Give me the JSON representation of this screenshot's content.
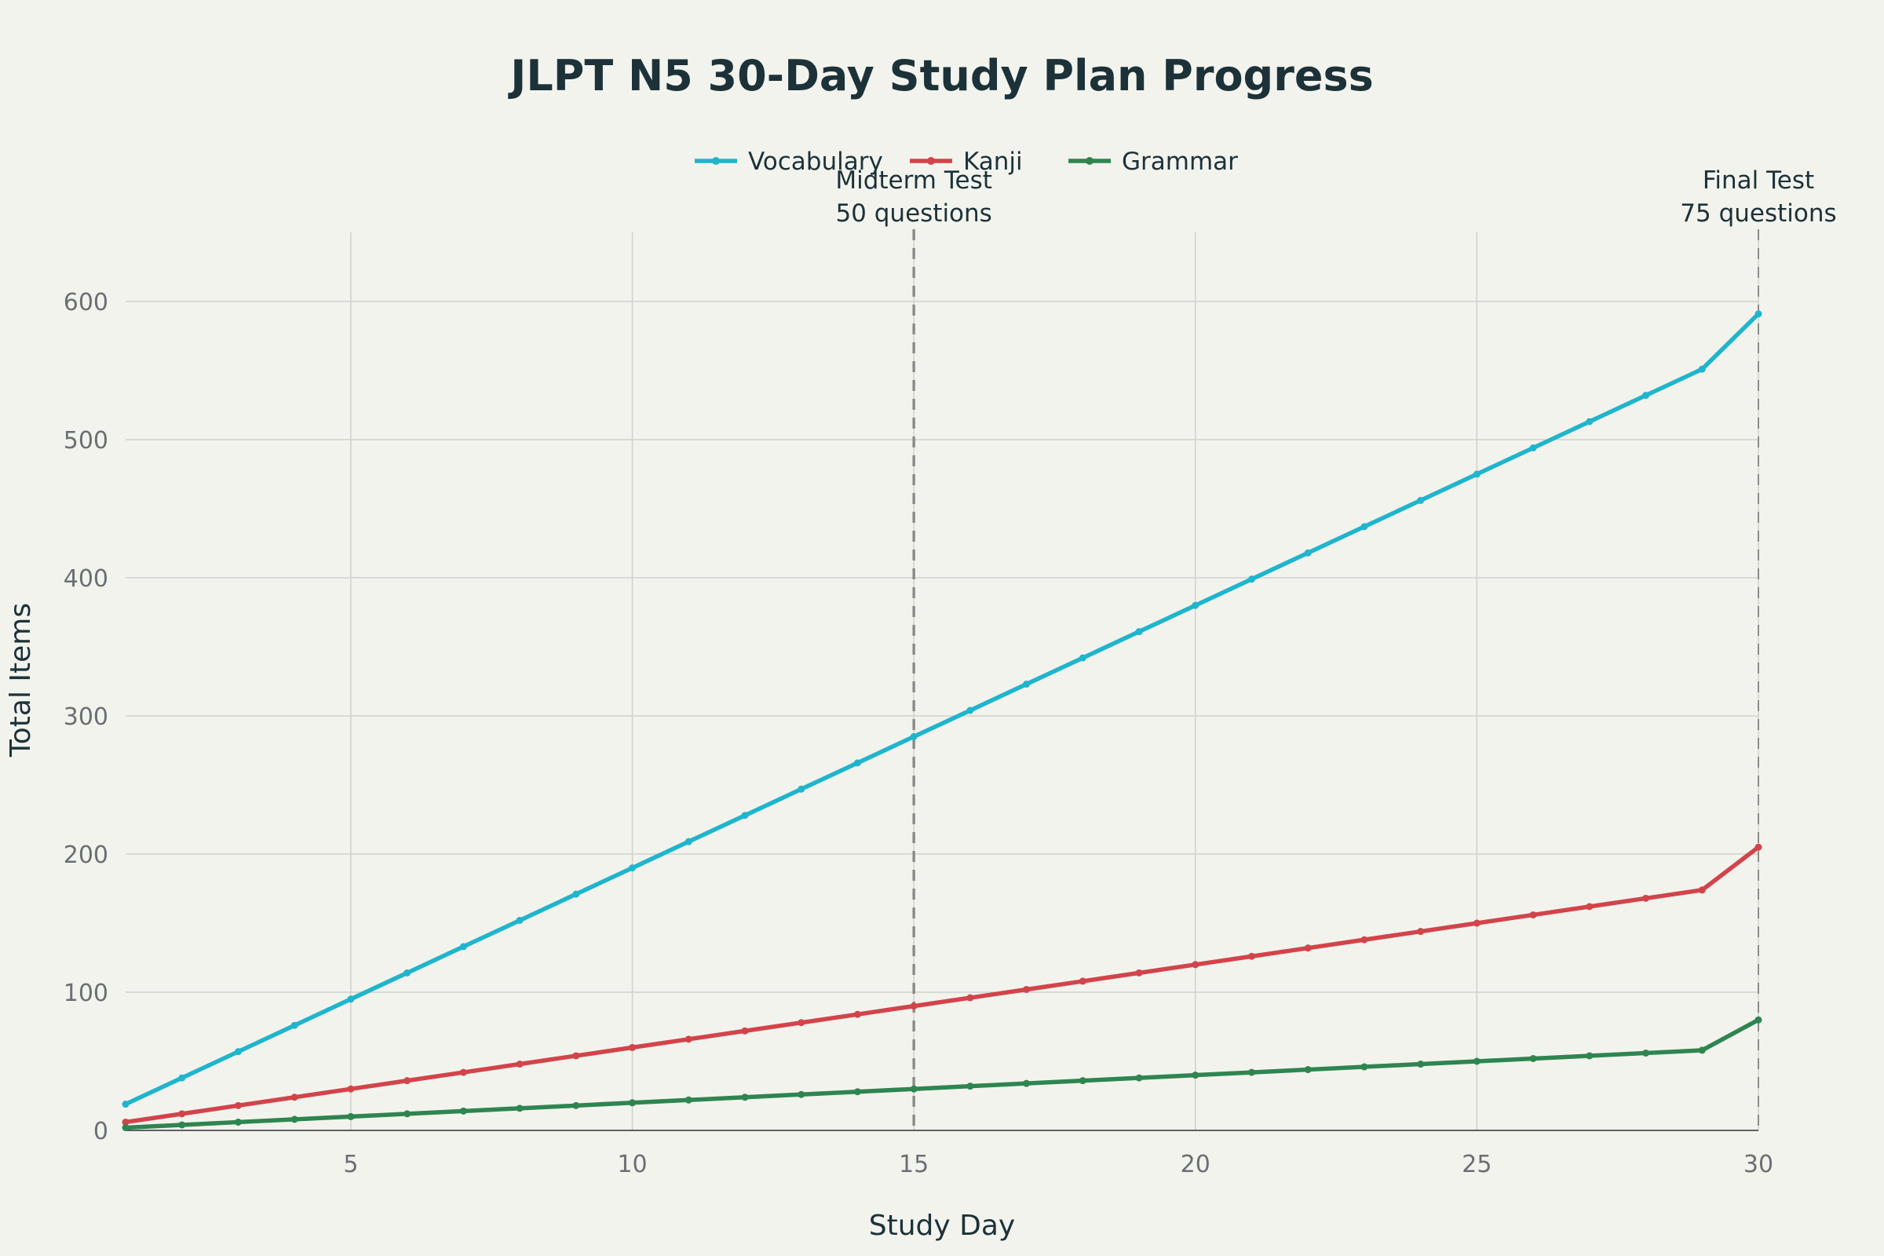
{
  "chart_data": {
    "type": "line",
    "title": "JLPT N5 30-Day Study Plan Progress",
    "xlabel": "Study Day",
    "ylabel": "Total Items",
    "xlim": [
      1,
      30
    ],
    "ylim": [
      0,
      650
    ],
    "x_ticks": [
      5,
      10,
      15,
      20,
      25,
      30
    ],
    "y_ticks": [
      0,
      100,
      200,
      300,
      400,
      500,
      600
    ],
    "grid": true,
    "legend_position": "top-center",
    "x": [
      1,
      2,
      3,
      4,
      5,
      6,
      7,
      8,
      9,
      10,
      11,
      12,
      13,
      14,
      15,
      16,
      17,
      18,
      19,
      20,
      21,
      22,
      23,
      24,
      25,
      26,
      27,
      28,
      29,
      30
    ],
    "series": [
      {
        "name": "Vocabulary",
        "color": "#1fb5cc",
        "values": [
          19,
          38,
          57,
          76,
          95,
          114,
          133,
          152,
          171,
          190,
          209,
          228,
          247,
          266,
          285,
          304,
          323,
          342,
          361,
          380,
          399,
          418,
          437,
          456,
          475,
          494,
          513,
          532,
          551,
          591
        ]
      },
      {
        "name": "Kanji",
        "color": "#d2444a",
        "values": [
          6,
          12,
          18,
          24,
          30,
          36,
          42,
          48,
          54,
          60,
          66,
          72,
          78,
          84,
          90,
          96,
          102,
          108,
          114,
          120,
          126,
          132,
          138,
          144,
          150,
          156,
          162,
          168,
          174,
          205
        ]
      },
      {
        "name": "Grammar",
        "color": "#2e8550",
        "values": [
          2,
          4,
          6,
          8,
          10,
          12,
          14,
          16,
          18,
          20,
          22,
          24,
          26,
          28,
          30,
          32,
          34,
          36,
          38,
          40,
          42,
          44,
          46,
          48,
          50,
          52,
          54,
          56,
          58,
          80
        ]
      }
    ],
    "annotations": [
      {
        "x": 15,
        "line1": "Midterm Test",
        "line2": "50 questions",
        "line_color": "#8c8c8c"
      },
      {
        "x": 30,
        "line1": "Final Test",
        "line2": "75 questions",
        "line_color": "#8c8c8c"
      }
    ]
  }
}
